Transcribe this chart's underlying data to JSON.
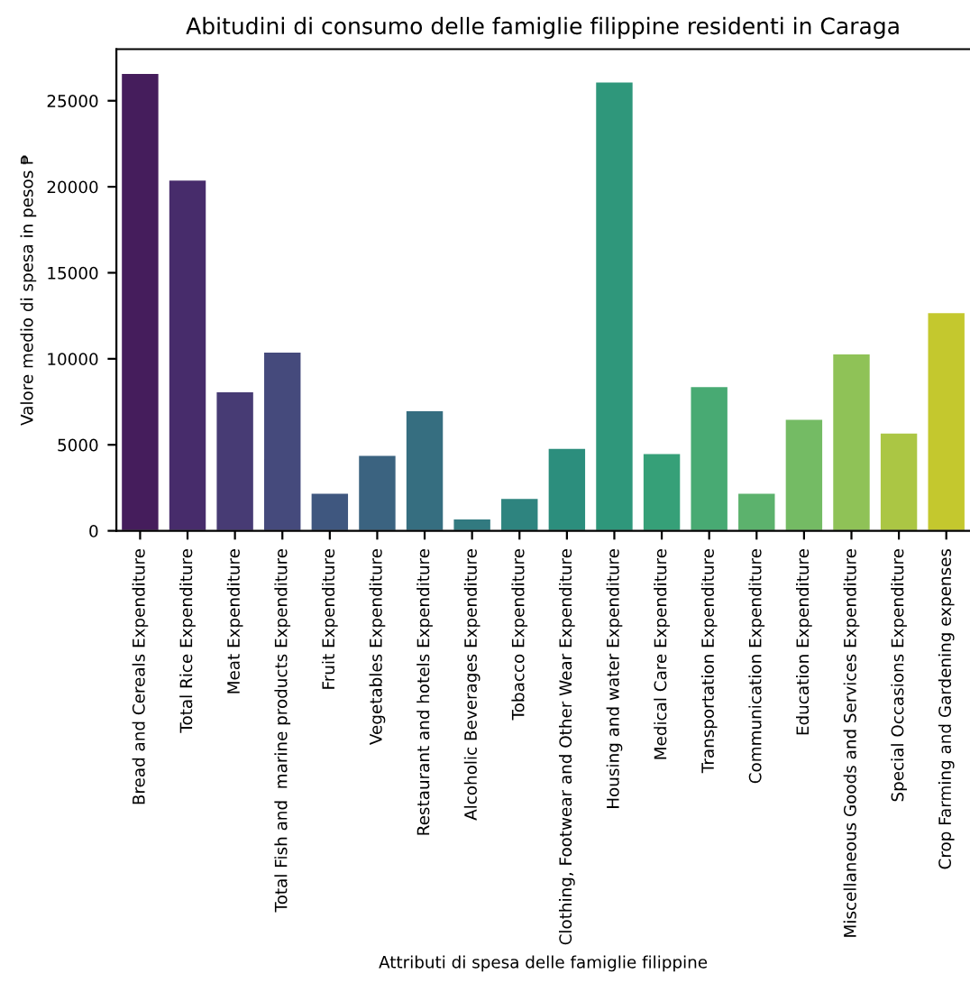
{
  "chart_data": {
    "type": "bar",
    "title": "Abitudini di consumo delle famiglie filippine residenti in Caraga",
    "xlabel": "Attributi di spesa delle famiglie filippine",
    "ylabel": "Valore medio di spesa in pesos ₱",
    "categories": [
      "Bread and Cereals Expenditure",
      "Total Rice Expenditure",
      "Meat Expenditure",
      "Total Fish and  marine products Expenditure",
      "Fruit Expenditure",
      "Vegetables Expenditure",
      "Restaurant and hotels Expenditure",
      "Alcoholic Beverages Expenditure",
      "Tobacco Expenditure",
      "Clothing, Footwear and Other Wear Expenditure",
      "Housing and water Expenditure",
      "Medical Care Expenditure",
      "Transportation Expenditure",
      "Communication Expenditure",
      "Education Expenditure",
      "Miscellaneous Goods and Services Expenditure",
      "Special Occasions Expenditure",
      "Crop Farming and Gardening expenses"
    ],
    "values": [
      26600,
      20400,
      8100,
      10400,
      2200,
      4400,
      7000,
      700,
      1900,
      4800,
      26100,
      4500,
      8400,
      2200,
      6500,
      10300,
      5700,
      12700
    ],
    "colors": [
      "#451d5c",
      "#472c6b",
      "#473b74",
      "#454a7c",
      "#3f577f",
      "#3b6380",
      "#366e80",
      "#327a80",
      "#2e847f",
      "#2c8e7d",
      "#2f977b",
      "#36a078",
      "#48aa73",
      "#5cb26d",
      "#74bb64",
      "#8fc257",
      "#abc644",
      "#c4c82e"
    ],
    "ylim": [
      0,
      28000
    ],
    "yticks": [
      0,
      5000,
      10000,
      15000,
      20000,
      25000
    ],
    "grid": false
  }
}
